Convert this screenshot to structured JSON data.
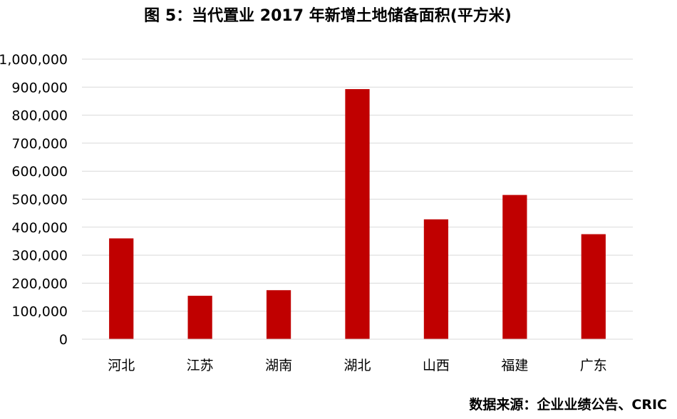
{
  "title": "图 5：当代置业 2017 年新增土地储备面积(平方米)",
  "source": "数据来源：企业业绩公告、CRIC",
  "chart_data": {
    "type": "bar",
    "title": "图 5：当代置业 2017 年新增土地储备面积(平方米)",
    "categories": [
      "河北",
      "江苏",
      "湖南",
      "湖北",
      "山西",
      "福建",
      "广东"
    ],
    "values": [
      360000,
      155000,
      175000,
      893000,
      428000,
      515000,
      375000
    ],
    "ylim": [
      0,
      1000000
    ],
    "yticks": [
      0,
      100000,
      200000,
      300000,
      400000,
      500000,
      600000,
      700000,
      800000,
      900000,
      1000000
    ],
    "ytick_labels": [
      "0",
      "100,000",
      "200,000",
      "300,000",
      "400,000",
      "500,000",
      "600,000",
      "700,000",
      "800,000",
      "900,000",
      "1,000,000"
    ],
    "xlabel": "",
    "ylabel": "",
    "grid": true,
    "bar_color": "#C00000",
    "grid_color": "#D9D9D9"
  }
}
